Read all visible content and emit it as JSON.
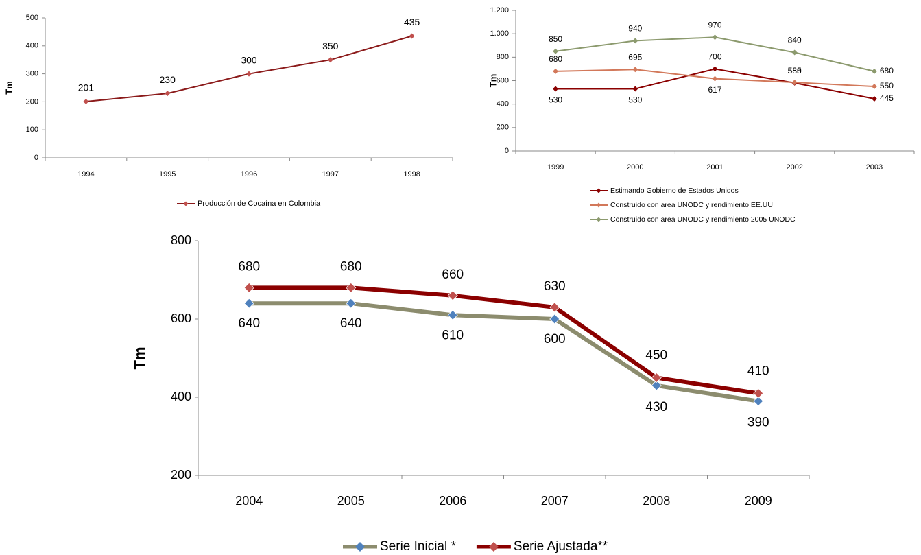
{
  "chart_data": [
    {
      "type": "line",
      "y_label": "Tm",
      "categories": [
        "1994",
        "1995",
        "1996",
        "1997",
        "1998"
      ],
      "series": [
        {
          "name": "Producción de Cocaína en Colombia",
          "color": "#8b1a1a",
          "marker_color": "#c0504d",
          "values": [
            201,
            230,
            300,
            350,
            435
          ]
        }
      ],
      "ylim": [
        0,
        500
      ],
      "yticks": [
        0,
        100,
        200,
        300,
        400,
        500
      ],
      "legend": "bottom"
    },
    {
      "type": "line",
      "y_label": "Tm",
      "categories": [
        "1999",
        "2000",
        "2001",
        "2002",
        "2003"
      ],
      "series": [
        {
          "name": "Estimando Gobierno de Estados Unidos",
          "color": "#8b0000",
          "marker_color": "#8b0000",
          "values": [
            530,
            530,
            700,
            580,
            445
          ]
        },
        {
          "name": "Construido con area UNODC y rendimiento EE.UU",
          "color": "#d2785a",
          "marker_color": "#d2785a",
          "values": [
            680,
            695,
            617,
            585,
            550
          ]
        },
        {
          "name": "Construido con area UNODC y rendimiento 2005 UNODC",
          "color": "#8c9a6e",
          "marker_color": "#8c9a6e",
          "values": [
            850,
            940,
            970,
            840,
            680
          ]
        }
      ],
      "ylim": [
        0,
        1200
      ],
      "yticks": [
        0,
        200,
        400,
        600,
        800,
        {
          "value": 1000,
          "label": "1.000"
        },
        {
          "value": 1200,
          "label": "1.200"
        }
      ],
      "legend": "bottom"
    },
    {
      "type": "line",
      "y_label": "Tm",
      "categories": [
        "2004",
        "2005",
        "2006",
        "2007",
        "2008",
        "2009"
      ],
      "series": [
        {
          "name": "Serie Inicial *",
          "color": "#8c8c6e",
          "marker_color": "#4f81bd",
          "values": [
            640,
            640,
            610,
            600,
            430,
            390
          ]
        },
        {
          "name": "Serie Ajustada**",
          "color": "#8b0000",
          "marker_color": "#c0504d",
          "values": [
            680,
            680,
            660,
            630,
            450,
            410
          ]
        }
      ],
      "ylim": [
        200,
        800
      ],
      "yticks": [
        200,
        400,
        600,
        800
      ],
      "legend": "bottom"
    }
  ]
}
